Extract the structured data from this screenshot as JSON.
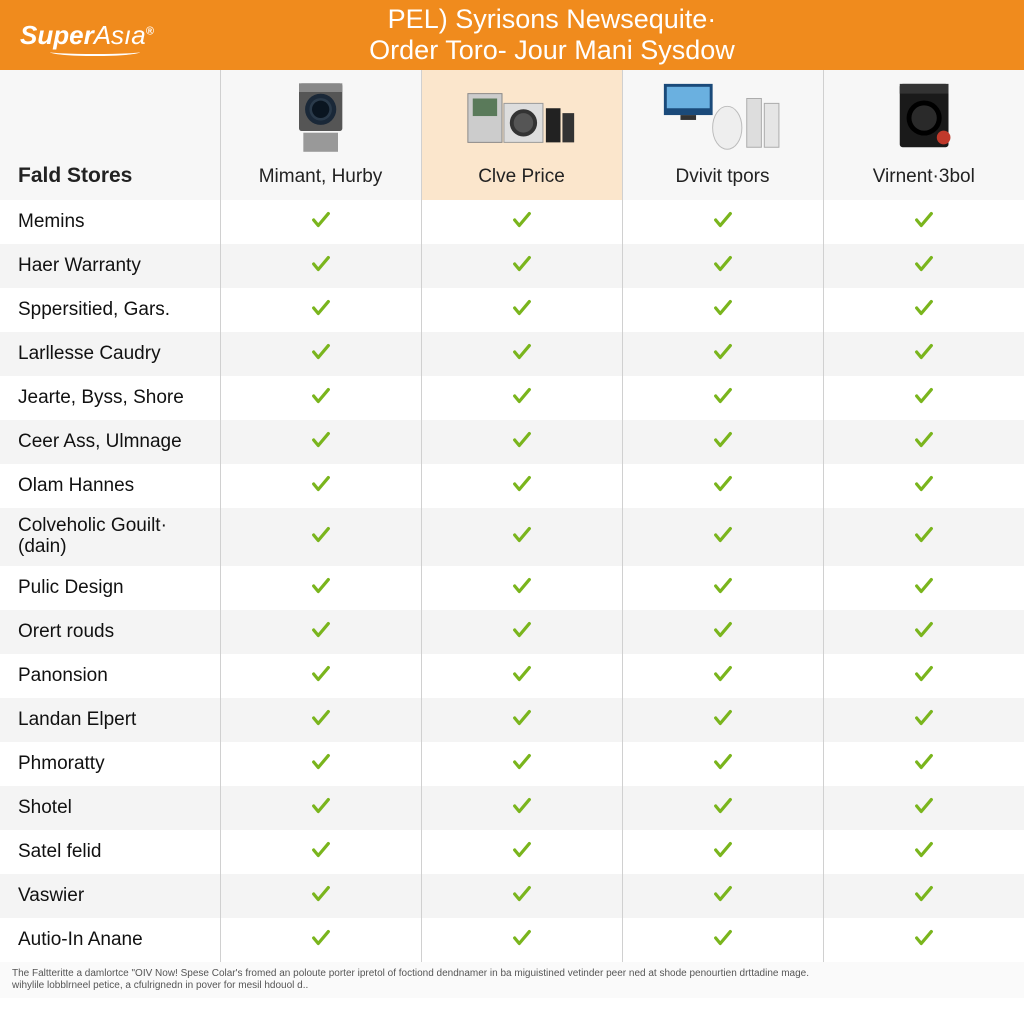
{
  "brand": {
    "super": "Super",
    "asia": "Asıa",
    "reg": "®"
  },
  "header": {
    "title_line1": "PEL) Syrisons Newsequite·",
    "title_line2": "Order Toro- Jour Mani Sysdow"
  },
  "colors": {
    "header_bg": "#f08b1d",
    "highlight_bg": "#fbe6cc",
    "check": "#7ab51d",
    "row_alt": "#f4f4f4",
    "border": "#d0d0d0"
  },
  "columns": [
    {
      "label": "Fald Stores",
      "is_feature_header": true
    },
    {
      "label": "Mimant, Hurby",
      "highlight": false
    },
    {
      "label": "Clve Price",
      "highlight": true
    },
    {
      "label": "Dvivit tpors",
      "highlight": false
    },
    {
      "label": "Virnent·3bol",
      "highlight": false
    }
  ],
  "rows": [
    {
      "label": "Memins",
      "vals": [
        true,
        true,
        true,
        true
      ]
    },
    {
      "label": "Haer Warranty",
      "vals": [
        true,
        true,
        true,
        true
      ]
    },
    {
      "label": "Sppersitied, Gars.",
      "vals": [
        true,
        true,
        true,
        true
      ]
    },
    {
      "label": "Larllesse Caudry",
      "vals": [
        true,
        true,
        true,
        true
      ]
    },
    {
      "label": "Jearte, Byss, Shore",
      "vals": [
        true,
        true,
        true,
        true
      ]
    },
    {
      "label": "Ceer Ass, Ulmnage",
      "vals": [
        true,
        true,
        true,
        true
      ]
    },
    {
      "label": "Olam Hannes",
      "vals": [
        true,
        true,
        true,
        true
      ]
    },
    {
      "label": "Colveholic Gouilt·\n(dain)",
      "vals": [
        true,
        true,
        true,
        true
      ],
      "tall": true
    },
    {
      "label": "Pulic Design",
      "vals": [
        true,
        true,
        true,
        true
      ]
    },
    {
      "label": "Orert rouds",
      "vals": [
        true,
        true,
        true,
        true
      ]
    },
    {
      "label": "Panonsion",
      "vals": [
        true,
        true,
        true,
        true
      ]
    },
    {
      "label": "Landan Elpert",
      "vals": [
        true,
        true,
        true,
        true
      ]
    },
    {
      "label": "Phmoratty",
      "vals": [
        true,
        true,
        true,
        true
      ]
    },
    {
      "label": "Shotel",
      "vals": [
        true,
        true,
        true,
        true
      ]
    },
    {
      "label": "Satel felid",
      "vals": [
        true,
        true,
        true,
        true
      ]
    },
    {
      "label": "Vaswier",
      "vals": [
        true,
        true,
        true,
        true
      ]
    },
    {
      "label": "Autio-In Anane",
      "vals": [
        true,
        true,
        true,
        true
      ]
    }
  ],
  "footer": {
    "line1": "The Faltteritte a damlortce \"OIV Now! Spese Colar's fromed an poloute porter ipretol of foctiond dendnamer in ba miguistined vetinder peer ned at shode penourtien drttadine mage.",
    "line2": "wihylile lobblrneel petice, a cfulrignedn in pover for mesil hdouol d.."
  }
}
